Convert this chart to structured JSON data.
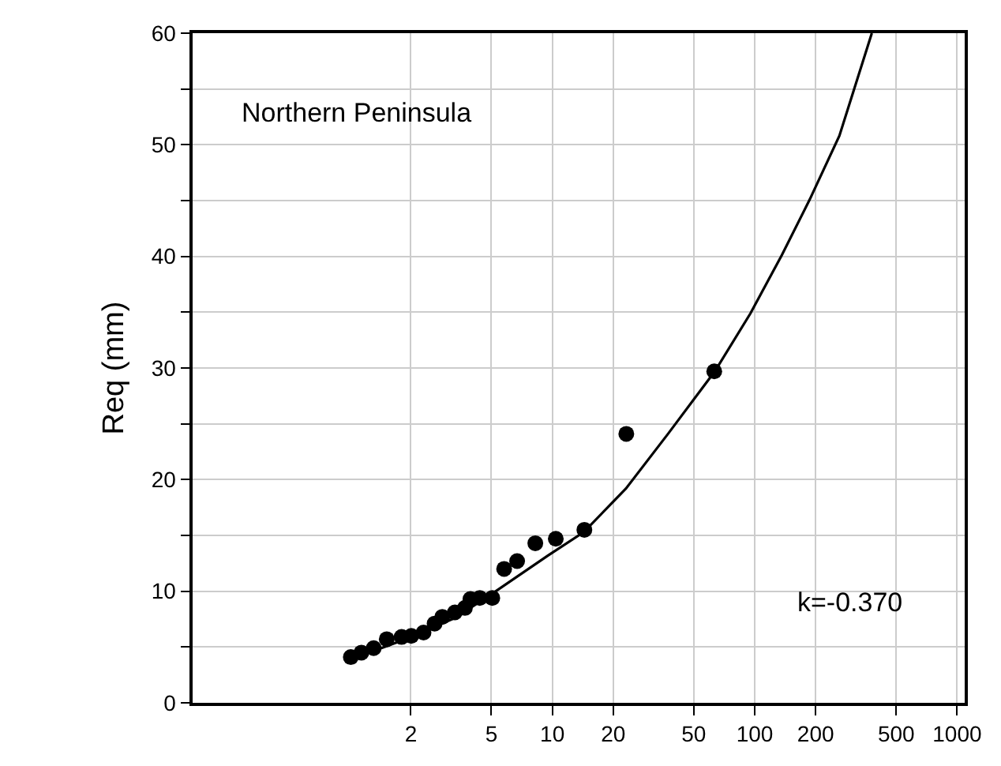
{
  "chart_data": {
    "type": "scatter",
    "ylabel": "Req (mm)",
    "annotations": [
      "Northern Peninsula",
      "k=-0.370"
    ],
    "log": "x",
    "grid": true,
    "xlim": [
      0.167,
      1090
    ],
    "xticks": [
      2,
      5,
      10,
      20,
      50,
      100,
      200,
      500,
      1000
    ],
    "ylim": [
      0,
      60
    ],
    "yticks": [
      0,
      {
        "value": 5,
        "label": null
      },
      10,
      {
        "value": 15,
        "label": null
      },
      20,
      {
        "value": 25,
        "label": null
      },
      30,
      {
        "value": 35,
        "label": null
      },
      40,
      {
        "value": 45,
        "label": null
      },
      50,
      {
        "value": 55,
        "label": null
      },
      60
    ],
    "series": [
      {
        "marker": "circle",
        "color": "#000000",
        "x": [
          1.01,
          1.14,
          1.31,
          1.52,
          1.8,
          2.01,
          2.31,
          2.62,
          2.86,
          3.3,
          3.7,
          3.94,
          4.38,
          5.05,
          5.78,
          6.7,
          8.24,
          10.4,
          14.4,
          23.2,
          63.1
        ],
        "values": [
          4.1,
          4.5,
          4.9,
          5.7,
          5.9,
          6.0,
          6.3,
          7.1,
          7.7,
          8.1,
          8.5,
          9.3,
          9.4,
          9.4,
          12.0,
          12.7,
          14.3,
          14.7,
          15.5,
          24.1,
          29.7
        ]
      },
      {
        "type": "line",
        "marker": "none",
        "line_style": "solid",
        "color": "#000000",
        "x": [
          1.01,
          2.01,
          3.3,
          4.97,
          9.53,
          14.3,
          23.1,
          37.3,
          63.5,
          95.3,
          136,
          187,
          262,
          379
        ],
        "values": [
          3.9,
          5.9,
          7.6,
          9.7,
          13.2,
          15.3,
          19.2,
          24.1,
          29.7,
          34.9,
          40.1,
          45.1,
          50.8,
          60.0
        ]
      }
    ]
  }
}
